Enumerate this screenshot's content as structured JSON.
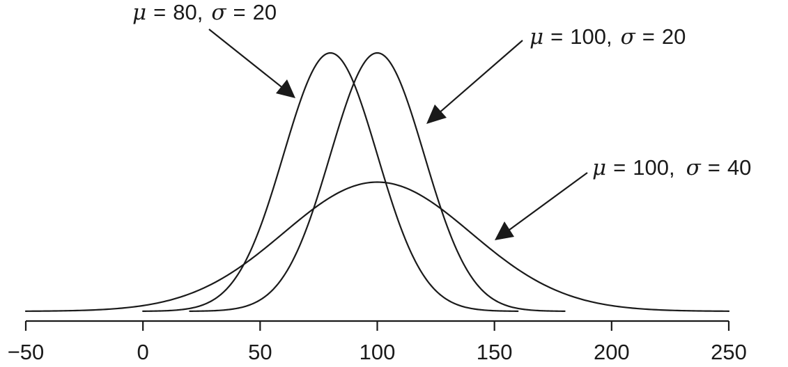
{
  "chart_data": {
    "type": "line",
    "title": "",
    "xlabel": "",
    "ylabel": "",
    "xlim": [
      -50,
      250
    ],
    "x_ticks": [
      -50,
      0,
      50,
      100,
      150,
      200,
      250
    ],
    "x_tick_labels": [
      "−50",
      "0",
      "50",
      "100",
      "150",
      "200",
      "250"
    ],
    "grid": false,
    "series": [
      {
        "mu": 80,
        "sigma": 20,
        "x_range": [
          0,
          160
        ]
      },
      {
        "mu": 100,
        "sigma": 20,
        "x_range": [
          20,
          180
        ]
      },
      {
        "mu": 100,
        "sigma": 40,
        "x_range": [
          -50,
          250
        ]
      }
    ],
    "annotations": [
      {
        "mu_symbol": "μ",
        "eq": "=",
        "mu_value": "80,",
        "sigma_symbol": "σ",
        "sigma_value": "20"
      },
      {
        "mu_symbol": "μ",
        "eq": "=",
        "mu_value": "100,",
        "sigma_symbol": "σ",
        "sigma_value": "20"
      },
      {
        "mu_symbol": "μ",
        "eq": "=",
        "mu_value": "100,",
        "sigma_symbol": "σ",
        "sigma_value": "40"
      }
    ]
  }
}
